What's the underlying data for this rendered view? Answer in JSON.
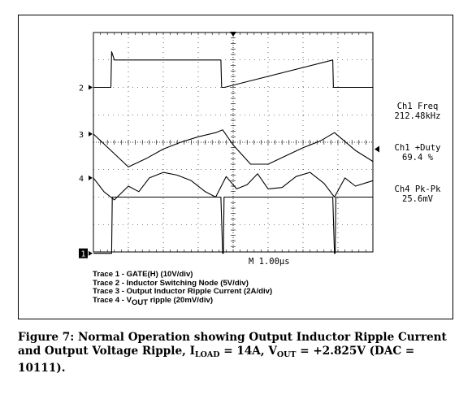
{
  "chart_data": {
    "type": "line",
    "title": "",
    "timebase": "M 1.00µs",
    "channel_markers": [
      "2",
      "3",
      "4",
      "1"
    ],
    "series": [
      {
        "name": "Trace 1 - GATE(H) (10V/div)",
        "marker": "1",
        "x": [
          0.0,
          0.5,
          0.52,
          0.54,
          0.8,
          1.0,
          1.1,
          3.65,
          3.7,
          3.72,
          3.74,
          4.0,
          4.2,
          4.3,
          6.85,
          6.9,
          6.92,
          6.94,
          7.2,
          7.4,
          7.5,
          8.0
        ],
        "y": [
          -0.05,
          -0.05,
          -0.05,
          2.0,
          2.0,
          2.0,
          2.0,
          2.0,
          -0.05,
          -0.05,
          2.0,
          2.0,
          2.0,
          2.0,
          2.0,
          -0.05,
          -0.05,
          2.0,
          2.0,
          2.0,
          2.0,
          2.0
        ]
      },
      {
        "name": "Trace 2 - Inductor Switching Node (5V/div)",
        "marker": "2",
        "x": [
          0.0,
          0.5,
          0.52,
          0.6,
          3.65,
          3.67,
          3.75,
          6.85,
          6.87,
          6.95,
          8.0
        ],
        "y": [
          6.0,
          6.0,
          7.3,
          7.0,
          7.0,
          6.0,
          6.0,
          7.0,
          6.0,
          6.0,
          6.0
        ]
      },
      {
        "name": "Trace 3 - Output Inductor Ripple Current (2A/div)",
        "marker": "3",
        "x": [
          0.0,
          0.5,
          1.0,
          1.5,
          2.0,
          2.5,
          3.0,
          3.5,
          3.7,
          4.0,
          4.5,
          5.0,
          5.5,
          6.0,
          6.5,
          6.9,
          7.5,
          8.0
        ],
        "y": [
          4.3,
          3.7,
          3.1,
          3.4,
          3.75,
          4.0,
          4.2,
          4.35,
          4.45,
          3.9,
          3.2,
          3.2,
          3.5,
          3.8,
          4.05,
          4.35,
          3.7,
          3.3
        ]
      },
      {
        "name": "Trace 4 - VOUT ripple (20mV/div)",
        "marker": "4",
        "x": [
          0.0,
          0.3,
          0.6,
          1.0,
          1.3,
          1.6,
          2.0,
          2.4,
          2.8,
          3.2,
          3.5,
          3.8,
          4.1,
          4.4,
          4.7,
          5.0,
          5.4,
          5.8,
          6.2,
          6.6,
          6.9,
          7.2,
          7.5,
          8.0
        ],
        "y": [
          2.7,
          2.2,
          1.9,
          2.4,
          2.2,
          2.7,
          2.9,
          2.8,
          2.6,
          2.2,
          2.0,
          2.75,
          2.3,
          2.45,
          2.85,
          2.3,
          2.35,
          2.75,
          2.9,
          2.5,
          2.0,
          2.7,
          2.4,
          2.6
        ]
      }
    ],
    "measurements": [
      {
        "label": "Ch1 Freq",
        "value": "212.48kHz"
      },
      {
        "label": "Ch1 +Duty",
        "value": "69.4 %"
      },
      {
        "label": "Ch4 Pk-Pk",
        "value": "25.6mV"
      }
    ],
    "xlim": [
      0,
      8
    ],
    "ylim": [
      0,
      8
    ],
    "grid": true
  },
  "legend_lines": [
    "Trace 1 - GATE(H) (10V/div)",
    "Trace 2 - Inductor Switching Node (5V/div)",
    "Trace 3 - Output Inductor Ripple Current (2A/div)"
  ],
  "legend_line4": {
    "pre": "Trace 4 - V",
    "sub": "OUT",
    "post": " ripple (20mV/div)"
  },
  "caption": {
    "line1": "Figure 7: Normal Operation showing Output Inductor Ripple Current",
    "line2_pre": "and Output Voltage Ripple, I",
    "line2_sub1": "LOAD",
    "line2_mid": " = 14A, V",
    "line2_sub2": "OUT",
    "line2_post": " = +2.825V (DAC =",
    "line3": "10111)."
  },
  "colors": {
    "trace": "#000000",
    "grid": "#000000",
    "background": "#ffffff"
  }
}
